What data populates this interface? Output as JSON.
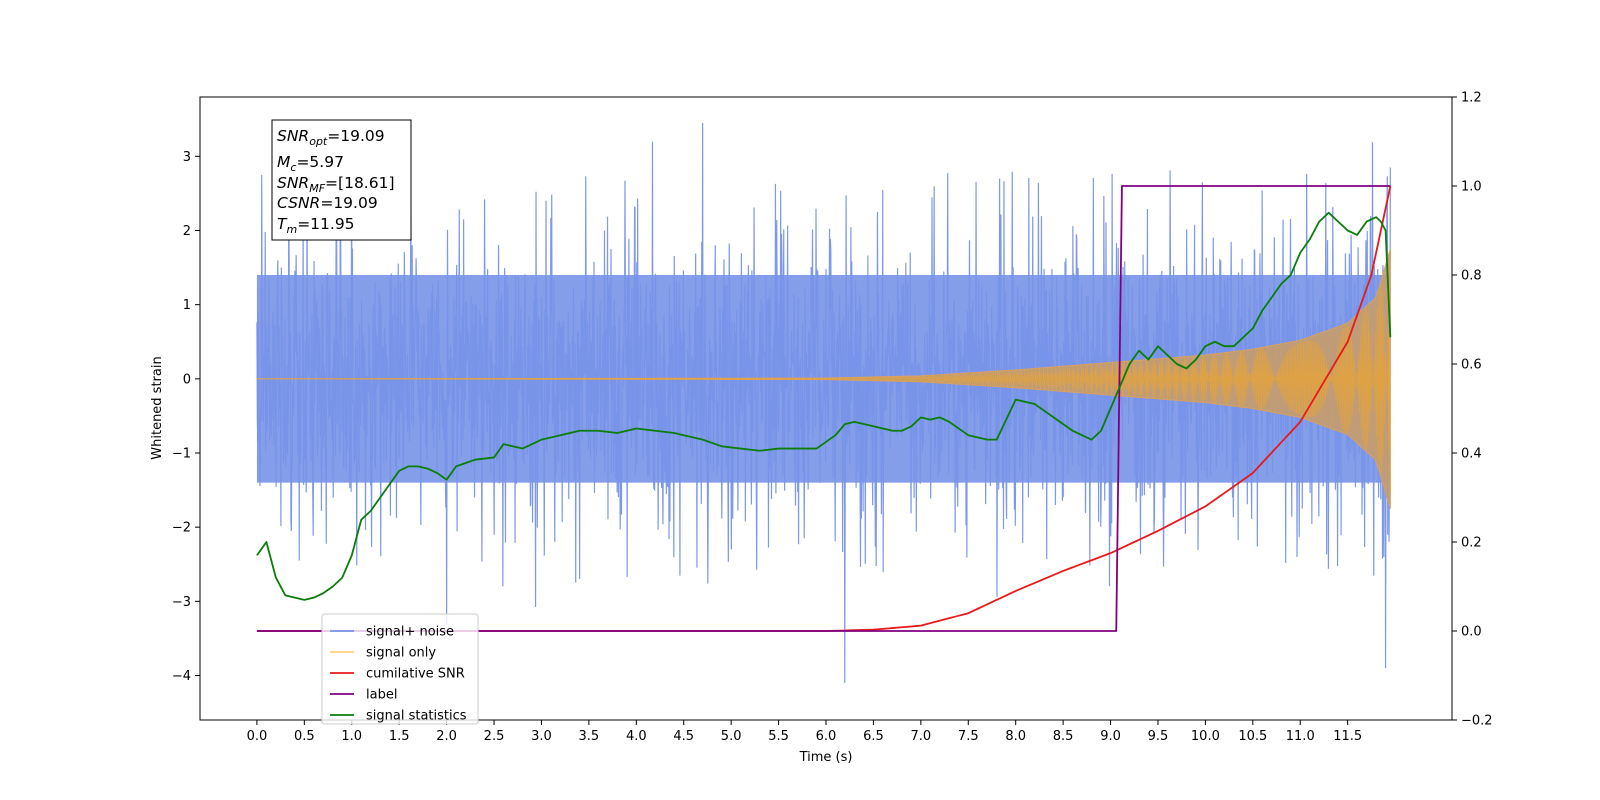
{
  "chart_data": {
    "type": "line",
    "xlabel": "Time (s)",
    "ylabel": "Whitened strain",
    "xlim": [
      -0.6,
      12.6
    ],
    "ylim": [
      -4.6,
      3.8
    ],
    "y2lim": [
      -0.2,
      1.2
    ],
    "x_ticks": [
      "0.0",
      "0.5",
      "1.0",
      "1.5",
      "2.0",
      "2.5",
      "3.0",
      "3.5",
      "4.0",
      "4.5",
      "5.0",
      "5.5",
      "6.0",
      "6.5",
      "7.0",
      "7.5",
      "8.0",
      "8.5",
      "9.0",
      "9.5",
      "10.0",
      "10.5",
      "11.0",
      "11.5"
    ],
    "y_ticks": [
      "3",
      "2",
      "1",
      "0",
      "−1",
      "−2",
      "−3",
      "−4"
    ],
    "y2_ticks": [
      "1.2",
      "1.0",
      "0.8",
      "0.6",
      "0.4",
      "0.2",
      "0.0",
      "−0.2"
    ],
    "annotations": {
      "snr_opt": "=19.09",
      "mc": "=5.97",
      "snr_mf": "=[18.61]",
      "csnr": "=19.09",
      "tm": "=11.95"
    },
    "legend_position": "lower-left",
    "series": [
      {
        "name": "signal+ noise",
        "color": "#7894e8",
        "axis": "left",
        "noise_envelope": {
          "x": [
            0.0,
            11.95
          ],
          "typical_upper": 1.4,
          "typical_lower": -1.4
        },
        "notable_spikes": [
          {
            "x": 0.05,
            "y": 2.75
          },
          {
            "x": 1.0,
            "y": 2.9
          },
          {
            "x": 4.7,
            "y": 3.45
          },
          {
            "x": 6.2,
            "y": 3.3
          },
          {
            "x": 6.2,
            "y": -4.1
          },
          {
            "x": 2.0,
            "y": -3.3
          },
          {
            "x": 11.9,
            "y": -3.9
          },
          {
            "x": 11.95,
            "y": 2.85
          }
        ]
      },
      {
        "name": "signal only",
        "color": "#f5a623",
        "axis": "left",
        "x": [
          0.0,
          6.0,
          7.0,
          8.0,
          9.0,
          10.0,
          10.5,
          11.0,
          11.5,
          11.8,
          11.95
        ],
        "amplitude": [
          0.0,
          0.01,
          0.04,
          0.12,
          0.22,
          0.32,
          0.4,
          0.52,
          0.75,
          1.1,
          1.75
        ]
      },
      {
        "name": "cumilative SNR",
        "color": "#e8191a",
        "axis": "right",
        "x": [
          0.0,
          6.0,
          6.5,
          7.0,
          7.5,
          8.0,
          8.5,
          9.0,
          9.5,
          10.0,
          10.5,
          11.0,
          11.5,
          11.75,
          11.95
        ],
        "y": [
          0.0,
          0.0,
          0.003,
          0.012,
          0.04,
          0.09,
          0.135,
          0.175,
          0.225,
          0.28,
          0.355,
          0.47,
          0.65,
          0.8,
          1.0
        ]
      },
      {
        "name": "label",
        "color": "#800080",
        "axis": "right",
        "x": [
          0.0,
          9.06,
          9.12,
          11.95
        ],
        "y": [
          0.0,
          0.0,
          1.0,
          1.0
        ]
      },
      {
        "name": "signal statistics",
        "color": "#0a7d0a",
        "axis": "right",
        "x": [
          0.0,
          0.1,
          0.2,
          0.3,
          0.4,
          0.5,
          0.6,
          0.7,
          0.8,
          0.9,
          1.0,
          1.1,
          1.2,
          1.3,
          1.4,
          1.5,
          1.6,
          1.7,
          1.8,
          1.9,
          2.0,
          2.1,
          2.3,
          2.5,
          2.6,
          2.8,
          3.0,
          3.2,
          3.4,
          3.5,
          3.6,
          3.8,
          4.0,
          4.2,
          4.4,
          4.5,
          4.7,
          4.9,
          5.1,
          5.3,
          5.5,
          5.7,
          5.9,
          6.1,
          6.2,
          6.3,
          6.5,
          6.7,
          6.8,
          6.9,
          7.0,
          7.1,
          7.2,
          7.3,
          7.5,
          7.7,
          7.8,
          8.0,
          8.2,
          8.4,
          8.6,
          8.7,
          8.8,
          8.9,
          9.0,
          9.1,
          9.2,
          9.3,
          9.4,
          9.5,
          9.6,
          9.7,
          9.8,
          9.9,
          10.0,
          10.1,
          10.2,
          10.3,
          10.4,
          10.5,
          10.6,
          10.7,
          10.8,
          10.9,
          11.0,
          11.1,
          11.2,
          11.3,
          11.4,
          11.5,
          11.6,
          11.7,
          11.8,
          11.85,
          11.9,
          11.95
        ],
        "y": [
          0.17,
          0.2,
          0.12,
          0.08,
          0.075,
          0.07,
          0.075,
          0.085,
          0.1,
          0.12,
          0.17,
          0.25,
          0.27,
          0.3,
          0.33,
          0.36,
          0.37,
          0.37,
          0.365,
          0.355,
          0.34,
          0.37,
          0.385,
          0.39,
          0.42,
          0.41,
          0.43,
          0.44,
          0.45,
          0.45,
          0.45,
          0.445,
          0.455,
          0.45,
          0.445,
          0.44,
          0.43,
          0.415,
          0.41,
          0.405,
          0.41,
          0.41,
          0.41,
          0.44,
          0.465,
          0.47,
          0.46,
          0.45,
          0.45,
          0.46,
          0.48,
          0.475,
          0.48,
          0.47,
          0.44,
          0.43,
          0.43,
          0.52,
          0.51,
          0.48,
          0.45,
          0.44,
          0.43,
          0.45,
          0.5,
          0.55,
          0.6,
          0.63,
          0.61,
          0.64,
          0.62,
          0.6,
          0.59,
          0.61,
          0.64,
          0.65,
          0.64,
          0.64,
          0.66,
          0.68,
          0.72,
          0.75,
          0.78,
          0.8,
          0.85,
          0.88,
          0.92,
          0.94,
          0.92,
          0.9,
          0.89,
          0.92,
          0.93,
          0.92,
          0.9,
          0.66
        ]
      }
    ]
  }
}
